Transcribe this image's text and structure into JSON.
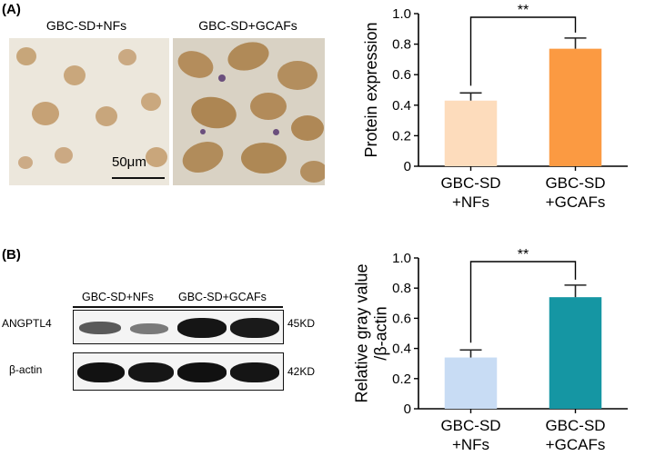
{
  "panel_a": {
    "label": "(A)",
    "images": [
      {
        "label": "GBC-SD+NFs"
      },
      {
        "label": "GBC-SD+GCAFs"
      }
    ],
    "scale_bar": "50μm"
  },
  "panel_b": {
    "label": "(B)",
    "blot": {
      "lane_labels": [
        "GBC-SD+NFs",
        "GBC-SD+GCAFs"
      ],
      "rows": [
        {
          "protein": "ANGPTL4",
          "size": "45KD"
        },
        {
          "protein": "β-actin",
          "size": "42KD"
        }
      ]
    }
  },
  "chart_data": [
    {
      "type": "bar",
      "panel": "A",
      "categories": [
        [
          "GBC-SD",
          "+NFs"
        ],
        [
          "GBC-SD",
          "+GCAFs"
        ]
      ],
      "values": [
        0.43,
        0.77
      ],
      "errors": [
        0.05,
        0.07
      ],
      "colors": [
        "#fddcbc",
        "#fb9a42"
      ],
      "ylabel": [
        "Protein expression"
      ],
      "ylim": [
        0,
        1.0
      ],
      "yticks": [
        0,
        0.2,
        0.4,
        0.6,
        0.8,
        1.0
      ],
      "significance": "**"
    },
    {
      "type": "bar",
      "panel": "B",
      "categories": [
        [
          "GBC-SD",
          "+NFs"
        ],
        [
          "GBC-SD",
          "+GCAFs"
        ]
      ],
      "values": [
        0.34,
        0.74
      ],
      "errors": [
        0.05,
        0.08
      ],
      "colors": [
        "#c8dcf4",
        "#1596a3"
      ],
      "ylabel": [
        "Relative gray value",
        "/β-actin"
      ],
      "ylim": [
        0,
        1.0
      ],
      "yticks": [
        0,
        0.2,
        0.4,
        0.6,
        0.8,
        1.0
      ],
      "significance": "**"
    }
  ]
}
